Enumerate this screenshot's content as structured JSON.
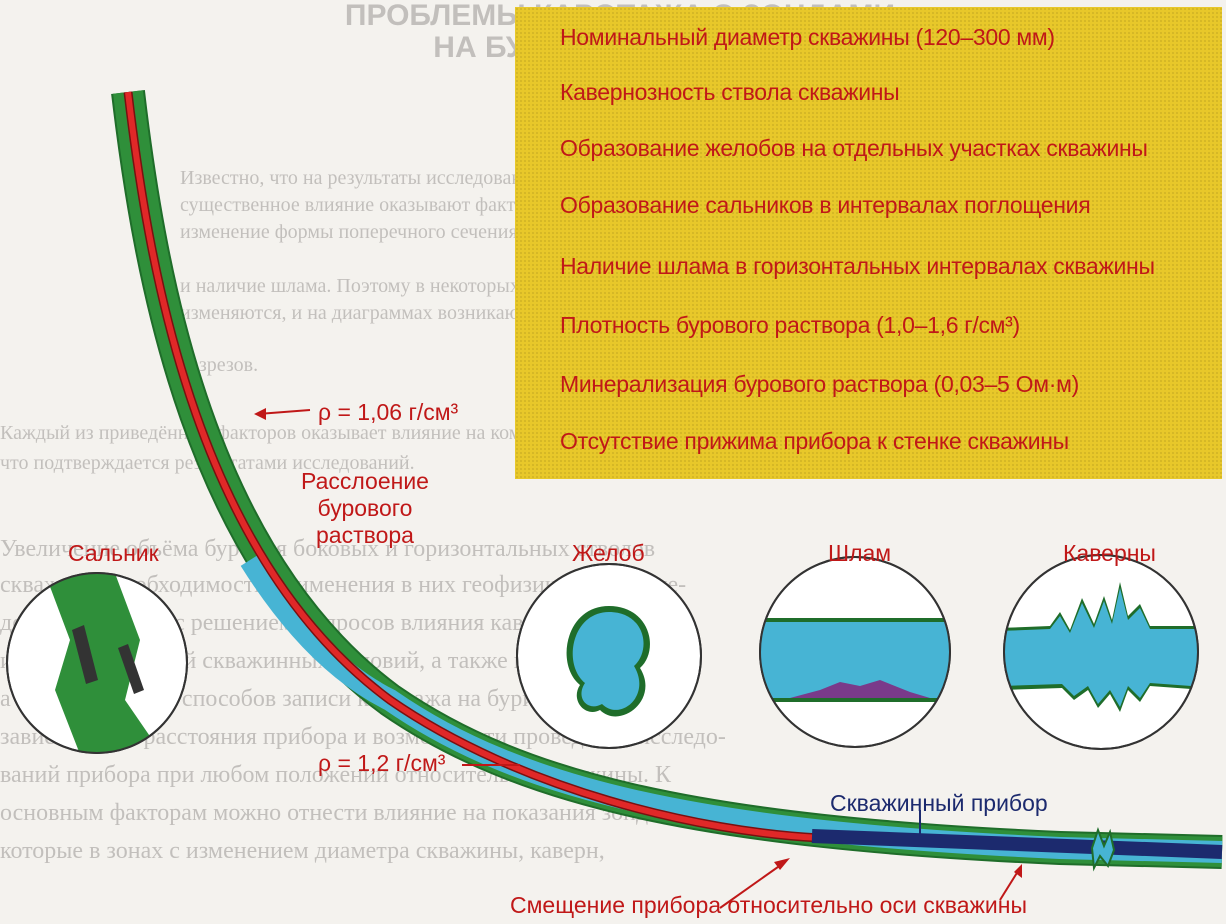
{
  "background_text": {
    "title_lines": [
      "ПРОБЛЕМЫ КАРОТАЖА С ЗОНДАМИ",
      "НА БУРИЛЬНЫХ ТРУБАХ"
    ],
    "para1": [
      "Известно, что на результаты исследований горизонтальных скважин зондами",
      "существенное влияние оказывают факторы, которые оказывают диаметр скважины,",
      "изменение формы поперечного сечения, отход прибора от стенки скважины",
      "и наличие шлама. Поэтому в некоторых интервалах значения диаметра",
      "изменяются, и на диаграммах возникают ложные аномалии",
      "разрезов."
    ],
    "para2": [
      "Каждый из приведённых факторов оказывает влияние на комплекс каротажа,",
      "что подтверждается результатами исследований."
    ],
    "para3": [
      "Увеличение объёма бурения боковых и горизонтальных стволов",
      "скважин и необходимость применения в них геофизических иссле-",
      "дований связано с решением вопросов влияния кавернозности",
      "и неоднородностей скважинных условий, а также шлама на зонды,",
      "а также изучения способов записи каротажа на бурильных трубах,",
      "зависящих от расстояния прибора и возможности проведения исследо-",
      "ваний прибора при любом положении относительно скважины. К",
      "основным факторам можно отнести влияние на показания зондов,",
      "которые в зонах с изменением диаметра скважины, каверн,"
    ]
  },
  "factors": [
    "Номинальный диаметр скважины (120–300 мм)",
    "Кавернозность ствола скважины",
    "Образование желобов на отдельных участках скважины",
    "Образование сальников в интервалах поглощения",
    "Наличие шлама в горизонтальных интервалах скважины",
    "Плотность бурового раствора (1,0–1,6 г/см³)",
    "Минерализация бурового раствора (0,03–5 Ом·м)",
    "Отсутствие прижима прибора к стенке скважины"
  ],
  "labels": {
    "salnik": "Сальник",
    "rassloenie": [
      "Расслоение",
      "бурового",
      "раствора"
    ],
    "rho1": "ρ = 1,06 г/см³",
    "zhelob": "Желоб",
    "shlam": "Шлам",
    "kaverny": "Каверны",
    "pribor": "Скважинный прибор",
    "rho2": "ρ = 1,2 г/см³",
    "smeshenie": "Смещение прибора относительно оси скважины"
  },
  "colors": {
    "label_red": "#c01818",
    "panel_yellow": "#e8c82a",
    "well_green": "#2f8f3a",
    "mud_blue": "#47b4d4",
    "pipe_red": "#e02828",
    "tool_navy": "#1c2a6e"
  }
}
